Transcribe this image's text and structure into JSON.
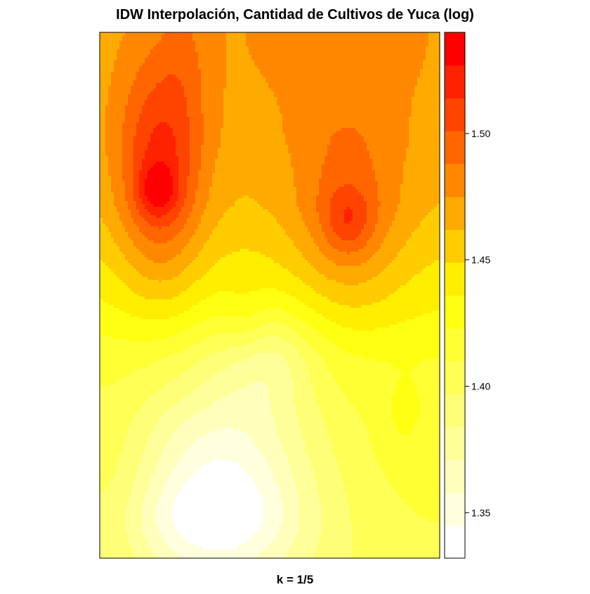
{
  "chart_data": {
    "type": "heatmap",
    "title": "IDW Interpolación, Cantidad de Cultivos de Yuca (log)",
    "xlabel": "k = 1/5",
    "ylabel": "",
    "legend": {
      "position": "right",
      "range": [
        1.332,
        1.54
      ],
      "ticks": [
        1.35,
        1.4,
        1.45,
        1.5
      ],
      "tick_labels": [
        "1.35",
        "1.40",
        "1.45",
        "1.50"
      ],
      "color_low": "#ffffff",
      "color_mid": "#ffff00",
      "color_high": "#ff0000",
      "n_bins": 16
    },
    "field": {
      "base": [
        {
          "y": 0.0,
          "v": 1.468
        },
        {
          "y": 0.2,
          "v": 1.466
        },
        {
          "y": 0.33,
          "v": 1.458
        },
        {
          "y": 0.43,
          "v": 1.445
        },
        {
          "y": 0.52,
          "v": 1.432
        },
        {
          "y": 0.62,
          "v": 1.415
        },
        {
          "y": 0.75,
          "v": 1.405
        },
        {
          "y": 1.0,
          "v": 1.398
        }
      ],
      "features": [
        {
          "x": 0.18,
          "y": 0.27,
          "amp": 0.055,
          "sx": 0.09,
          "sy": 0.16
        },
        {
          "x": 0.17,
          "y": 0.3,
          "amp": 0.03,
          "sx": 0.04,
          "sy": 0.035
        },
        {
          "x": 0.73,
          "y": 0.35,
          "amp": 0.035,
          "sx": 0.12,
          "sy": 0.14
        },
        {
          "x": 0.73,
          "y": 0.36,
          "amp": 0.025,
          "sx": 0.05,
          "sy": 0.045
        },
        {
          "x": 0.7,
          "y": 0.02,
          "amp": 0.012,
          "sx": 0.25,
          "sy": 0.12
        },
        {
          "x": 0.25,
          "y": 0.03,
          "amp": 0.01,
          "sx": 0.05,
          "sy": 0.1
        },
        {
          "x": 0.43,
          "y": 0.56,
          "amp": 0.012,
          "sx": 0.05,
          "sy": 0.06
        },
        {
          "x": 0.36,
          "y": 0.86,
          "amp": -0.058,
          "sx": 0.18,
          "sy": 0.15
        },
        {
          "x": 0.49,
          "y": 0.62,
          "amp": -0.028,
          "sx": 0.1,
          "sy": 0.07
        },
        {
          "x": 0.3,
          "y": 0.93,
          "amp": -0.02,
          "sx": 0.2,
          "sy": 0.06
        },
        {
          "x": 0.05,
          "y": 0.9,
          "amp": 0.01,
          "sx": 0.08,
          "sy": 0.15
        },
        {
          "x": 0.89,
          "y": 0.74,
          "amp": 0.01,
          "sx": 0.05,
          "sy": 0.05
        },
        {
          "x": 1.0,
          "y": 0.82,
          "amp": 0.012,
          "sx": 0.2,
          "sy": 0.2
        }
      ]
    }
  }
}
